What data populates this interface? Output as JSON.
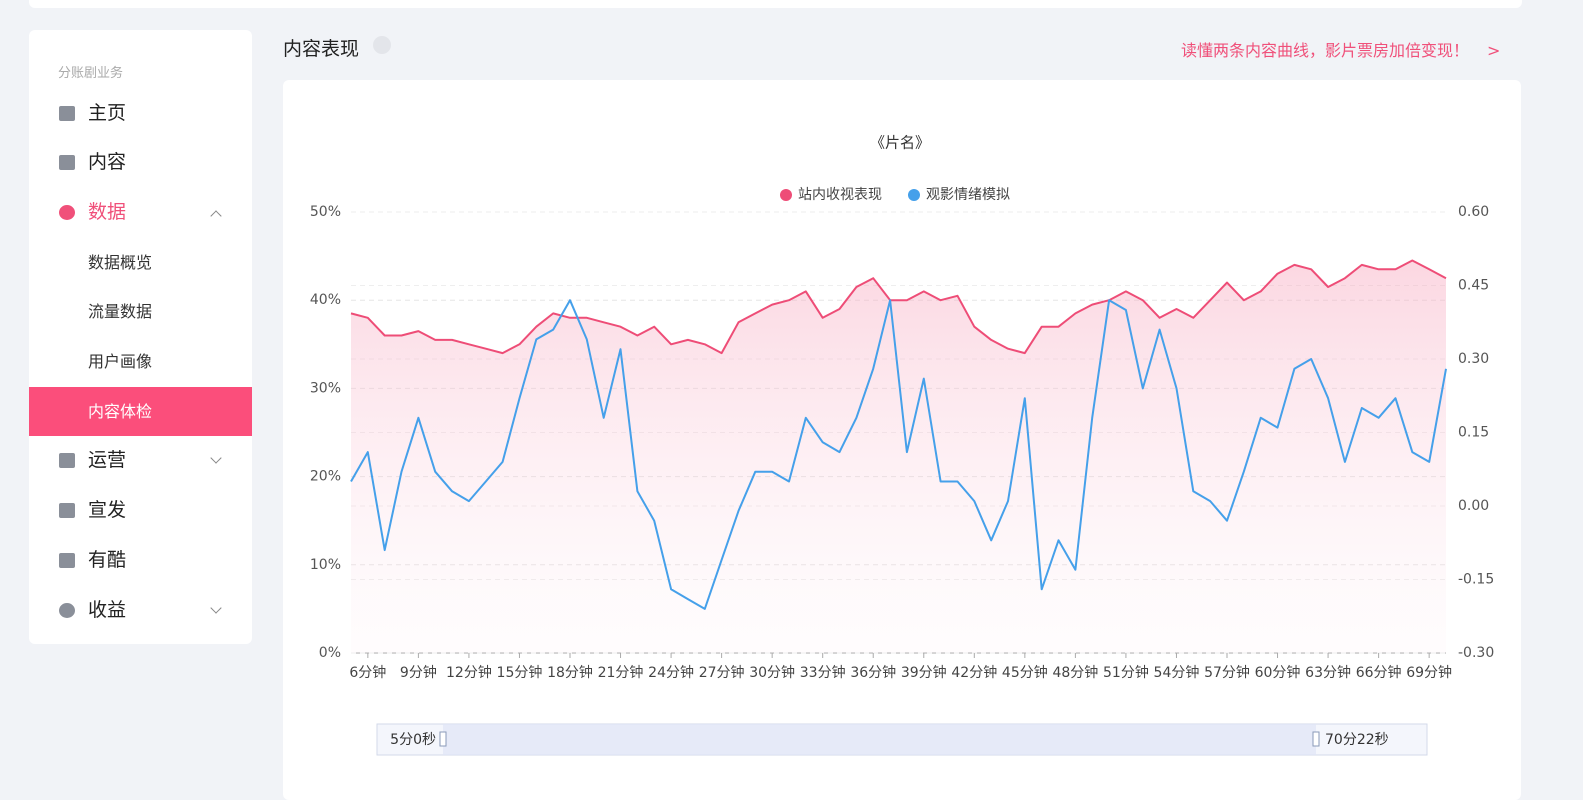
{
  "sidebar": {
    "section": "分账剧业务",
    "items": [
      "主页",
      "内容",
      "数据",
      "数据概览",
      "流量数据",
      "用户画像",
      "内容体检",
      "运营",
      "宣发",
      "有酷",
      "收益"
    ]
  },
  "header": {
    "title": "内容表现",
    "link": "读懂两条内容曲线，影片票房加倍变现！"
  },
  "chart_data": {
    "type": "line",
    "title": "《片名》",
    "categories": [
      null,
      "6分钟",
      null,
      null,
      "9分钟",
      null,
      null,
      "12分钟",
      null,
      null,
      "15分钟",
      null,
      null,
      "18分钟",
      null,
      null,
      "21分钟",
      null,
      null,
      "24分钟",
      null,
      null,
      "27分钟",
      null,
      null,
      "30分钟",
      null,
      null,
      "33分钟",
      null,
      null,
      "36分钟",
      null,
      null,
      "39分钟",
      null,
      null,
      "42分钟",
      null,
      null,
      "45分钟",
      null,
      null,
      "48分钟",
      null,
      null,
      "51分钟",
      null,
      null,
      "54分钟",
      null,
      null,
      "57分钟",
      null,
      null,
      "60分钟",
      null,
      null,
      "63分钟",
      null,
      null,
      "66分钟",
      null,
      null,
      "69分钟",
      null
    ],
    "series": [
      {
        "name": "站内收视表现",
        "color": "#ee4d77",
        "values": [
          38.5,
          38,
          36,
          36,
          36.5,
          35.5,
          35.5,
          35,
          34.5,
          34,
          35,
          37,
          38.5,
          38,
          38,
          37.5,
          37,
          36,
          37,
          35,
          35.5,
          35,
          34,
          37.5,
          38.5,
          39.5,
          40,
          41,
          38,
          39,
          41.5,
          42.5,
          40,
          40,
          41,
          40,
          40.5,
          37,
          35.5,
          34.5,
          34,
          37,
          37,
          38.5,
          39.5,
          40,
          41,
          40,
          38,
          39,
          38,
          40,
          42,
          40,
          41,
          43,
          44,
          43.5,
          41.5,
          42.5,
          44,
          43.5,
          43.5,
          44.5,
          43.5,
          42.5
        ]
      },
      {
        "name": "观影情绪模拟",
        "color": "#45a0ea",
        "axis": "y2",
        "values": [
          0.05,
          0.11,
          -0.09,
          0.07,
          0.18,
          0.07,
          0.03,
          0.01,
          0.05,
          0.09,
          0.22,
          0.34,
          0.36,
          0.42,
          0.34,
          0.18,
          0.32,
          0.03,
          -0.03,
          -0.17,
          -0.19,
          -0.21,
          -0.11,
          -0.01,
          0.07,
          0.07,
          0.05,
          0.18,
          0.13,
          0.11,
          0.18,
          0.28,
          0.42,
          0.11,
          0.26,
          0.05,
          0.05,
          0.01,
          -0.07,
          0.01,
          0.22,
          -0.17,
          -0.07,
          -0.13,
          0.18,
          0.42,
          0.4,
          0.24,
          0.36,
          0.24,
          0.03,
          0.01,
          -0.03,
          0.07,
          0.18,
          0.16,
          0.28,
          0.3,
          0.22,
          0.09,
          0.2,
          0.18,
          0.22,
          0.11,
          0.09,
          0.28
        ]
      }
    ],
    "ylim": [
      0,
      50
    ],
    "yticks": [
      {
        "value": 0,
        "label": "0%"
      },
      {
        "value": 10,
        "label": "10%"
      },
      {
        "value": 20,
        "label": "20%"
      },
      {
        "value": 30,
        "label": "30%"
      },
      {
        "value": 40,
        "label": "40%"
      },
      {
        "value": 50,
        "label": "50%"
      }
    ],
    "y2lim": [
      -0.3,
      0.6
    ],
    "y2ticks": [
      {
        "value": -0.3,
        "label": "-0.30"
      },
      {
        "value": -0.15,
        "label": "-0.15"
      },
      {
        "value": 0,
        "label": "0.00"
      },
      {
        "value": 0.15,
        "label": "0.15"
      },
      {
        "value": 0.3,
        "label": "0.30"
      },
      {
        "value": 0.45,
        "label": "0.45"
      },
      {
        "value": 0.6,
        "label": "0.60"
      }
    ],
    "grid": true,
    "legend": "top",
    "zoom": {
      "start": "5分0秒",
      "end": "70分22秒"
    }
  }
}
